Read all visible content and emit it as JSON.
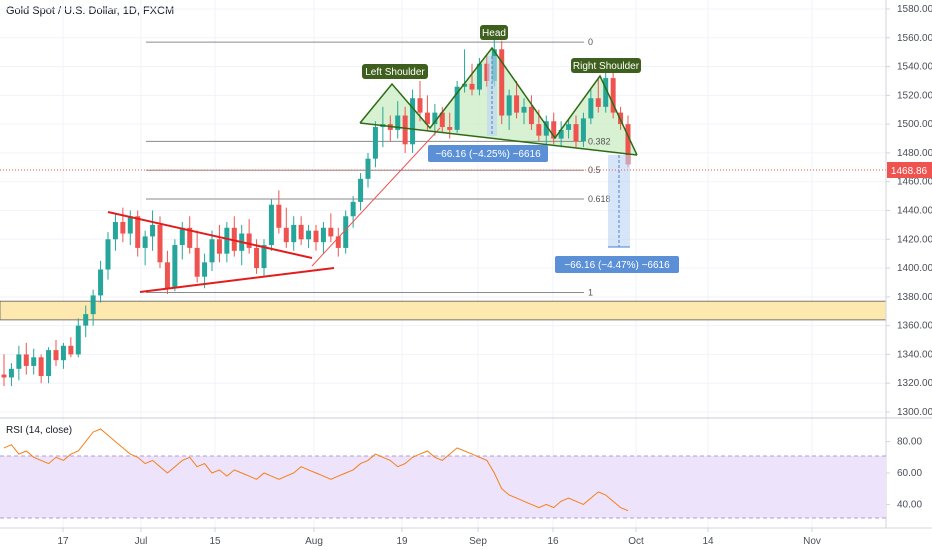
{
  "header": {
    "title": "Gold Spot / U.S. Dollar, 1D, FXCM"
  },
  "price_panel": {
    "y_ticks": [
      "1580.00",
      "1560.00",
      "1540.00",
      "1520.00",
      "1500.00",
      "1480.00",
      "1460.00",
      "1440.00",
      "1420.00",
      "1400.00",
      "1380.00",
      "1360.00",
      "1340.00",
      "1320.00",
      "1300.00"
    ],
    "current_price": "1468.86",
    "fib_labels": [
      "0",
      "0.382",
      "0.5",
      "0.618",
      "1"
    ],
    "annotations": {
      "left_shoulder": "Left Shoulder",
      "head": "Head",
      "right_shoulder": "Right Shoulder",
      "measure1": "−66.16 (−4.25%) −6616",
      "measure2": "−66.16 (−4.47%) −6616"
    },
    "colors": {
      "up": "#26a69a",
      "down": "#ef5350",
      "pattern_fill": "#c9ecc3",
      "zone": "#fde8b0",
      "label_bg": "#3f5f1e",
      "measure_bg": "#5b8fd6"
    }
  },
  "rsi_panel": {
    "label": "RSI (14, close)",
    "y_ticks": [
      "80.00",
      "60.00",
      "40.00"
    ]
  },
  "x_ticks": [
    "17",
    "Jul",
    "15",
    "Aug",
    "19",
    "Sep",
    "16",
    "Oct",
    "14",
    "Nov"
  ],
  "chart_data": [
    {
      "type": "candlestick",
      "title": "Gold Spot / U.S. Dollar, 1D, FXCM",
      "ylim": [
        1300,
        1580
      ],
      "current_price": 1468.86,
      "support_zone": [
        1364,
        1377
      ],
      "fib_levels": {
        "0": 1557,
        "0.382": 1488,
        "0.5": 1468,
        "0.618": 1448,
        "1": 1383
      },
      "ohlc": [
        [
          1326,
          1340,
          1318,
          1324
        ],
        [
          1324,
          1334,
          1318,
          1330
        ],
        [
          1330,
          1346,
          1322,
          1340
        ],
        [
          1340,
          1348,
          1326,
          1332
        ],
        [
          1332,
          1344,
          1326,
          1338
        ],
        [
          1338,
          1340,
          1320,
          1325
        ],
        [
          1325,
          1345,
          1320,
          1343
        ],
        [
          1343,
          1350,
          1332,
          1336
        ],
        [
          1336,
          1348,
          1330,
          1346
        ],
        [
          1346,
          1352,
          1338,
          1340
        ],
        [
          1340,
          1365,
          1338,
          1360
        ],
        [
          1360,
          1374,
          1352,
          1368
        ],
        [
          1368,
          1385,
          1360,
          1381
        ],
        [
          1381,
          1405,
          1376,
          1399
        ],
        [
          1399,
          1425,
          1392,
          1420
        ],
        [
          1420,
          1438,
          1412,
          1432
        ],
        [
          1432,
          1442,
          1418,
          1424
        ],
        [
          1424,
          1440,
          1416,
          1436
        ],
        [
          1436,
          1440,
          1408,
          1414
        ],
        [
          1414,
          1426,
          1402,
          1422
        ],
        [
          1422,
          1440,
          1412,
          1430
        ],
        [
          1430,
          1436,
          1400,
          1404
        ],
        [
          1404,
          1412,
          1382,
          1386
        ],
        [
          1386,
          1420,
          1384,
          1416
        ],
        [
          1416,
          1432,
          1406,
          1428
        ],
        [
          1428,
          1436,
          1410,
          1414
        ],
        [
          1414,
          1426,
          1390,
          1394
        ],
        [
          1394,
          1410,
          1386,
          1404
        ],
        [
          1404,
          1426,
          1398,
          1420
        ],
        [
          1420,
          1430,
          1404,
          1410
        ],
        [
          1410,
          1432,
          1404,
          1428
        ],
        [
          1428,
          1436,
          1408,
          1412
        ],
        [
          1412,
          1430,
          1402,
          1424
        ],
        [
          1424,
          1434,
          1410,
          1414
        ],
        [
          1414,
          1420,
          1396,
          1400
        ],
        [
          1400,
          1420,
          1394,
          1416
        ],
        [
          1416,
          1448,
          1412,
          1444
        ],
        [
          1444,
          1454,
          1424,
          1428
        ],
        [
          1428,
          1442,
          1414,
          1418
        ],
        [
          1418,
          1436,
          1412,
          1430
        ],
        [
          1430,
          1436,
          1416,
          1420
        ],
        [
          1420,
          1430,
          1414,
          1426
        ],
        [
          1426,
          1430,
          1412,
          1418
        ],
        [
          1418,
          1432,
          1410,
          1428
        ],
        [
          1428,
          1438,
          1418,
          1422
        ],
        [
          1422,
          1428,
          1408,
          1414
        ],
        [
          1414,
          1440,
          1410,
          1436
        ],
        [
          1436,
          1450,
          1428,
          1446
        ],
        [
          1446,
          1466,
          1440,
          1462
        ],
        [
          1462,
          1480,
          1456,
          1476
        ],
        [
          1476,
          1502,
          1470,
          1498
        ],
        [
          1498,
          1512,
          1484,
          1500
        ],
        [
          1500,
          1506,
          1488,
          1496
        ],
        [
          1496,
          1516,
          1490,
          1506
        ],
        [
          1506,
          1512,
          1480,
          1486
        ],
        [
          1486,
          1524,
          1480,
          1518
        ],
        [
          1518,
          1530,
          1502,
          1508
        ],
        [
          1508,
          1520,
          1496,
          1500
        ],
        [
          1500,
          1514,
          1492,
          1508
        ],
        [
          1508,
          1512,
          1494,
          1498
        ],
        [
          1498,
          1508,
          1490,
          1496
        ],
        [
          1496,
          1530,
          1494,
          1526
        ],
        [
          1526,
          1552,
          1522,
          1528
        ],
        [
          1528,
          1542,
          1520,
          1524
        ],
        [
          1524,
          1546,
          1520,
          1542
        ],
        [
          1542,
          1548,
          1526,
          1530
        ],
        [
          1530,
          1560,
          1526,
          1552
        ],
        [
          1552,
          1558,
          1500,
          1506
        ],
        [
          1506,
          1524,
          1496,
          1520
        ],
        [
          1520,
          1530,
          1504,
          1508
        ],
        [
          1508,
          1518,
          1500,
          1512
        ],
        [
          1512,
          1520,
          1496,
          1500
        ],
        [
          1500,
          1510,
          1488,
          1492
        ],
        [
          1492,
          1506,
          1484,
          1502
        ],
        [
          1502,
          1508,
          1486,
          1490
        ],
        [
          1490,
          1502,
          1484,
          1496
        ],
        [
          1496,
          1504,
          1490,
          1500
        ],
        [
          1500,
          1506,
          1484,
          1488
        ],
        [
          1488,
          1508,
          1484,
          1504
        ],
        [
          1504,
          1524,
          1500,
          1518
        ],
        [
          1518,
          1532,
          1508,
          1512
        ],
        [
          1512,
          1536,
          1508,
          1532
        ],
        [
          1532,
          1536,
          1504,
          1508
        ],
        [
          1508,
          1512,
          1496,
          1500
        ],
        [
          1500,
          1506,
          1470,
          1472
        ]
      ]
    },
    {
      "type": "line",
      "title": "RSI (14, close)",
      "ylim": [
        25,
        95
      ],
      "values": [
        76,
        78,
        72,
        74,
        70,
        68,
        66,
        70,
        68,
        72,
        74,
        80,
        86,
        88,
        84,
        80,
        76,
        72,
        70,
        66,
        68,
        64,
        60,
        64,
        68,
        70,
        64,
        66,
        60,
        62,
        58,
        62,
        60,
        58,
        56,
        60,
        58,
        56,
        58,
        60,
        64,
        62,
        60,
        58,
        56,
        58,
        60,
        62,
        66,
        68,
        72,
        70,
        68,
        64,
        66,
        70,
        72,
        74,
        70,
        68,
        72,
        76,
        74,
        72,
        70,
        68,
        60,
        50,
        46,
        44,
        42,
        40,
        38,
        40,
        38,
        42,
        44,
        42,
        40,
        44,
        48,
        46,
        42,
        38,
        36
      ]
    }
  ]
}
